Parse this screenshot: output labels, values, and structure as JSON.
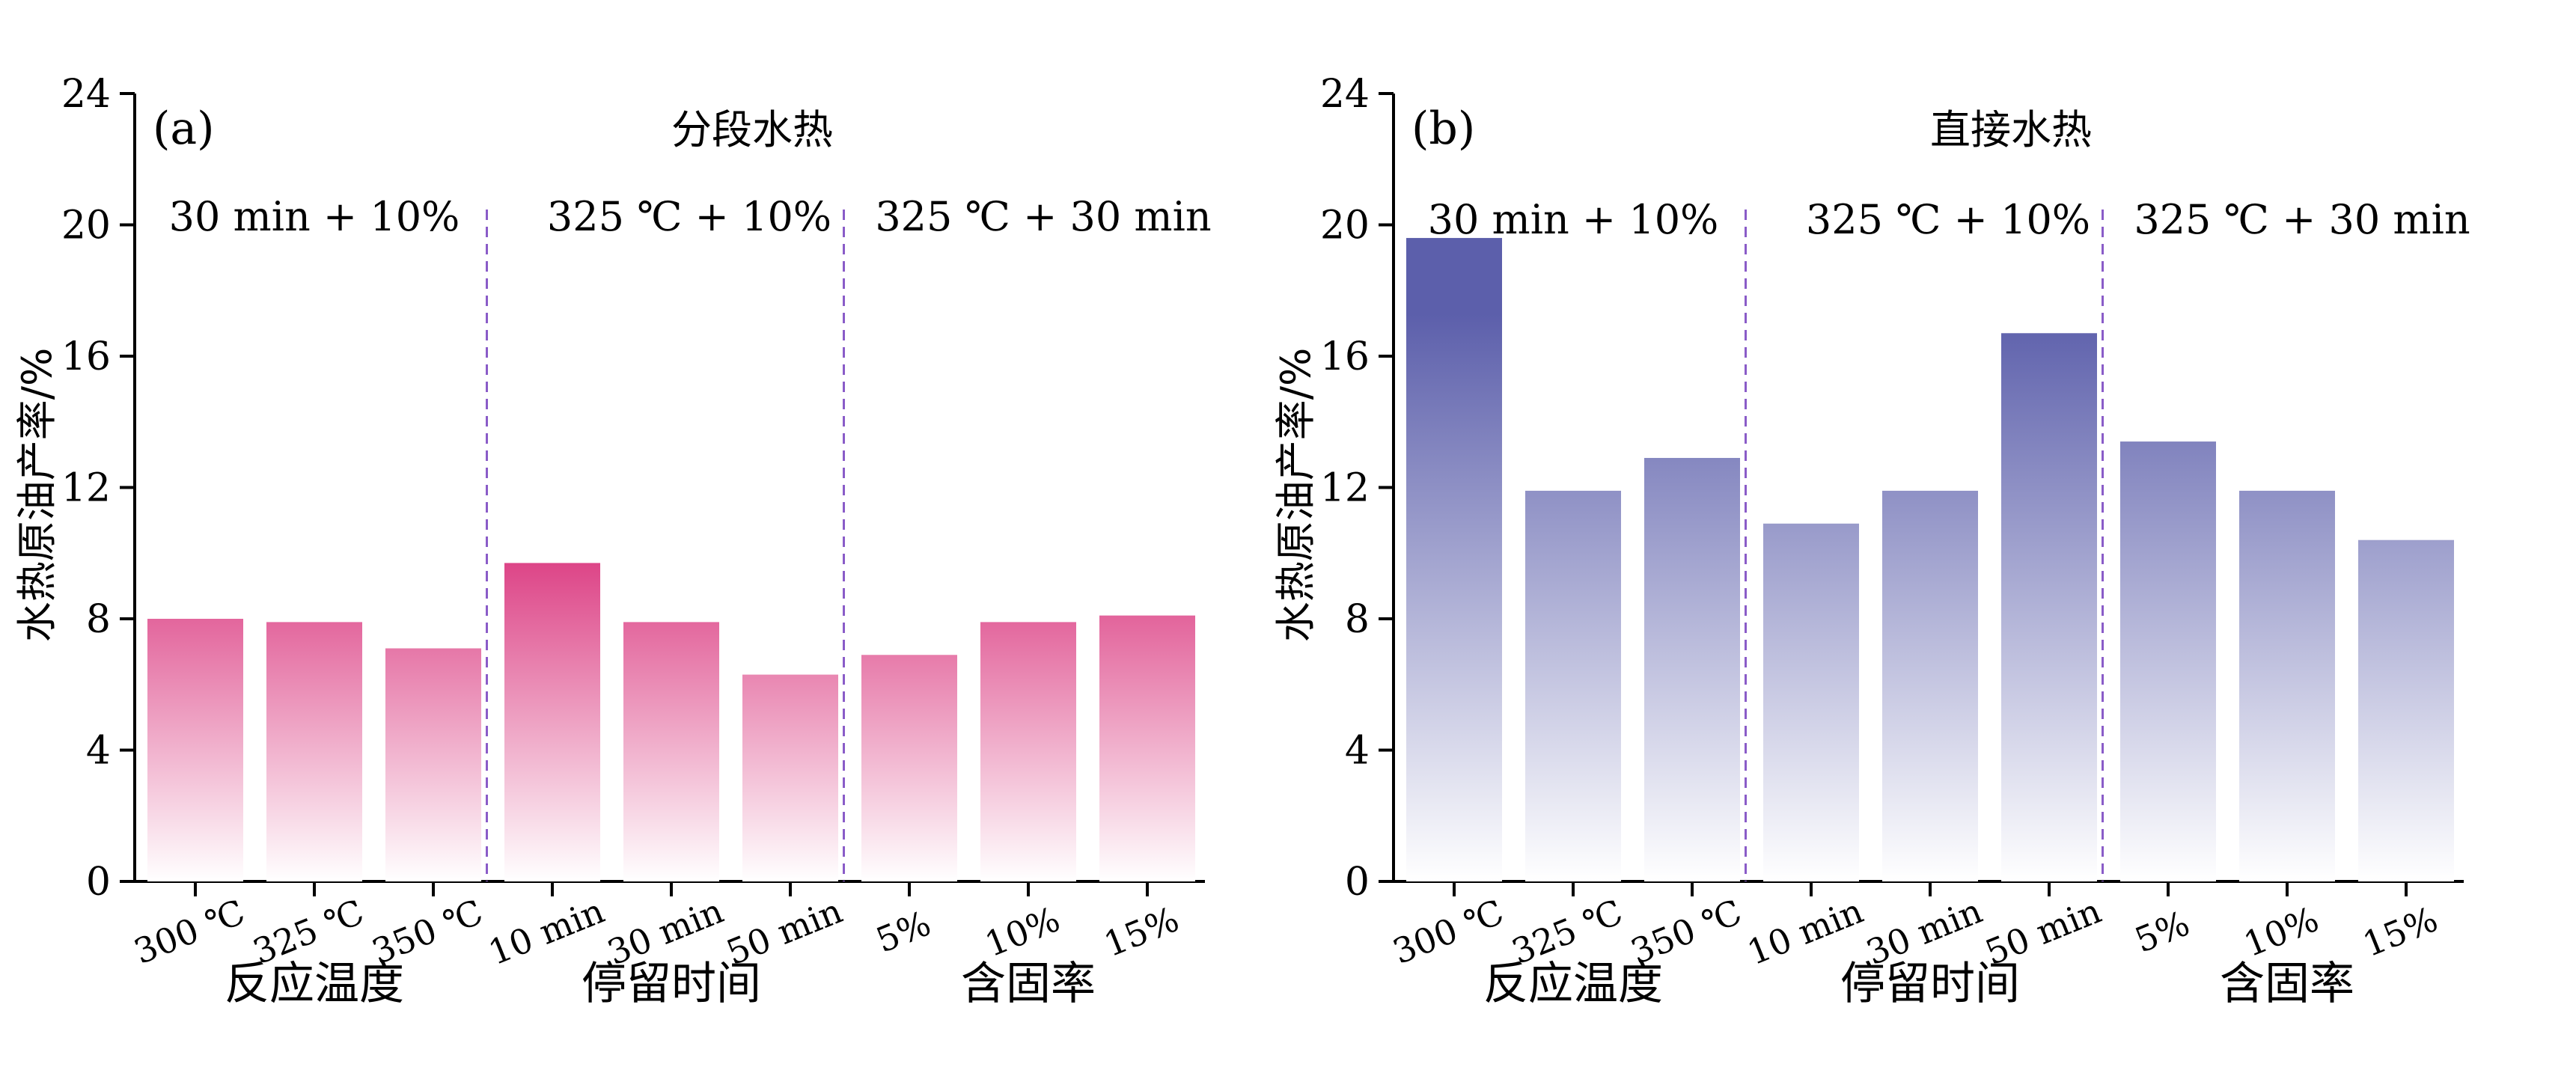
{
  "chart_data": [
    {
      "type": "bar",
      "panel_label": "(a)",
      "title": "分段水热",
      "ylabel": "水热原油产率/%",
      "ylim": [
        0,
        24
      ],
      "yticks": [
        0,
        4,
        8,
        12,
        16,
        20,
        24
      ],
      "grid": false,
      "color": "#d9307a",
      "groups": [
        {
          "name": "反应温度",
          "condition": "30 min + 10%",
          "categories": [
            "300 ℃",
            "325 ℃",
            "350 ℃"
          ],
          "values": [
            8.0,
            7.9,
            7.1
          ]
        },
        {
          "name": "停留时间",
          "condition": "325 ℃ + 10%",
          "categories": [
            "10 min",
            "30 min",
            "50 min"
          ],
          "values": [
            9.7,
            7.9,
            6.3
          ]
        },
        {
          "name": "含固率",
          "condition": "325 ℃ + 30 min",
          "categories": [
            "5%",
            "10%",
            "15%"
          ],
          "values": [
            6.9,
            7.9,
            8.1
          ]
        }
      ]
    },
    {
      "type": "bar",
      "panel_label": "(b)",
      "title": "直接水热",
      "ylabel": "水热原油产率/%",
      "ylim": [
        0,
        24
      ],
      "yticks": [
        0,
        4,
        8,
        12,
        16,
        20,
        24
      ],
      "grid": false,
      "color": "#5c5fab",
      "groups": [
        {
          "name": "反应温度",
          "condition": "30 min + 10%",
          "categories": [
            "300 ℃",
            "325 ℃",
            "350 ℃"
          ],
          "values": [
            19.6,
            11.9,
            12.9
          ]
        },
        {
          "name": "停留时间",
          "condition": "325 ℃ + 10%",
          "categories": [
            "10 min",
            "30 min",
            "50 min"
          ],
          "values": [
            10.9,
            11.9,
            16.7
          ]
        },
        {
          "name": "含固率",
          "condition": "325 ℃ + 30 min",
          "categories": [
            "5%",
            "10%",
            "15%"
          ],
          "values": [
            13.4,
            11.9,
            10.4
          ]
        }
      ]
    }
  ]
}
